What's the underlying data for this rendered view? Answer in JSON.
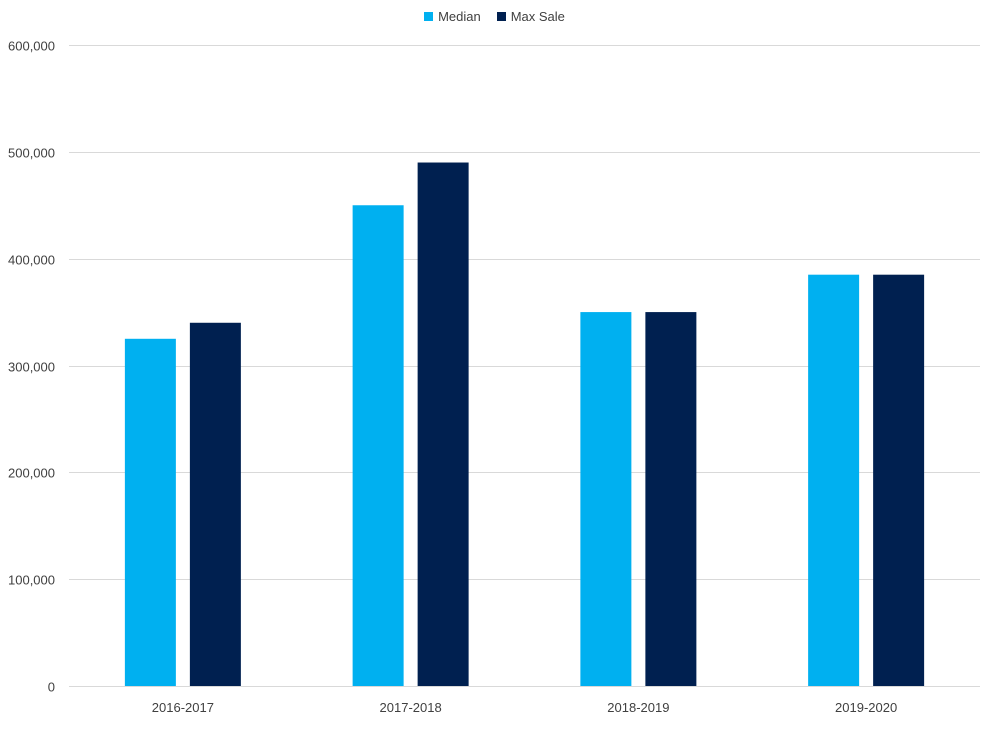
{
  "chart_data": {
    "type": "bar",
    "categories": [
      "2016-2017",
      "2017-2018",
      "2018-2019",
      "2019-2020"
    ],
    "series": [
      {
        "name": "Median",
        "color": "#00B0F0",
        "values": [
          325000,
          450000,
          350000,
          385000
        ]
      },
      {
        "name": "Max Sale",
        "color": "#002050",
        "values": [
          340000,
          490000,
          350000,
          385000
        ]
      }
    ],
    "ylim": [
      0,
      600000
    ],
    "yticks": [
      0,
      100000,
      200000,
      300000,
      400000,
      500000,
      600000
    ],
    "ytick_labels": [
      "0",
      "100,000",
      "200,000",
      "300,000",
      "400,000",
      "500,000",
      "600,000"
    ],
    "title": "",
    "xlabel": "",
    "ylabel": "",
    "grid": true,
    "gridline_color": "#d9d9d9",
    "legend_position": "top-center"
  }
}
